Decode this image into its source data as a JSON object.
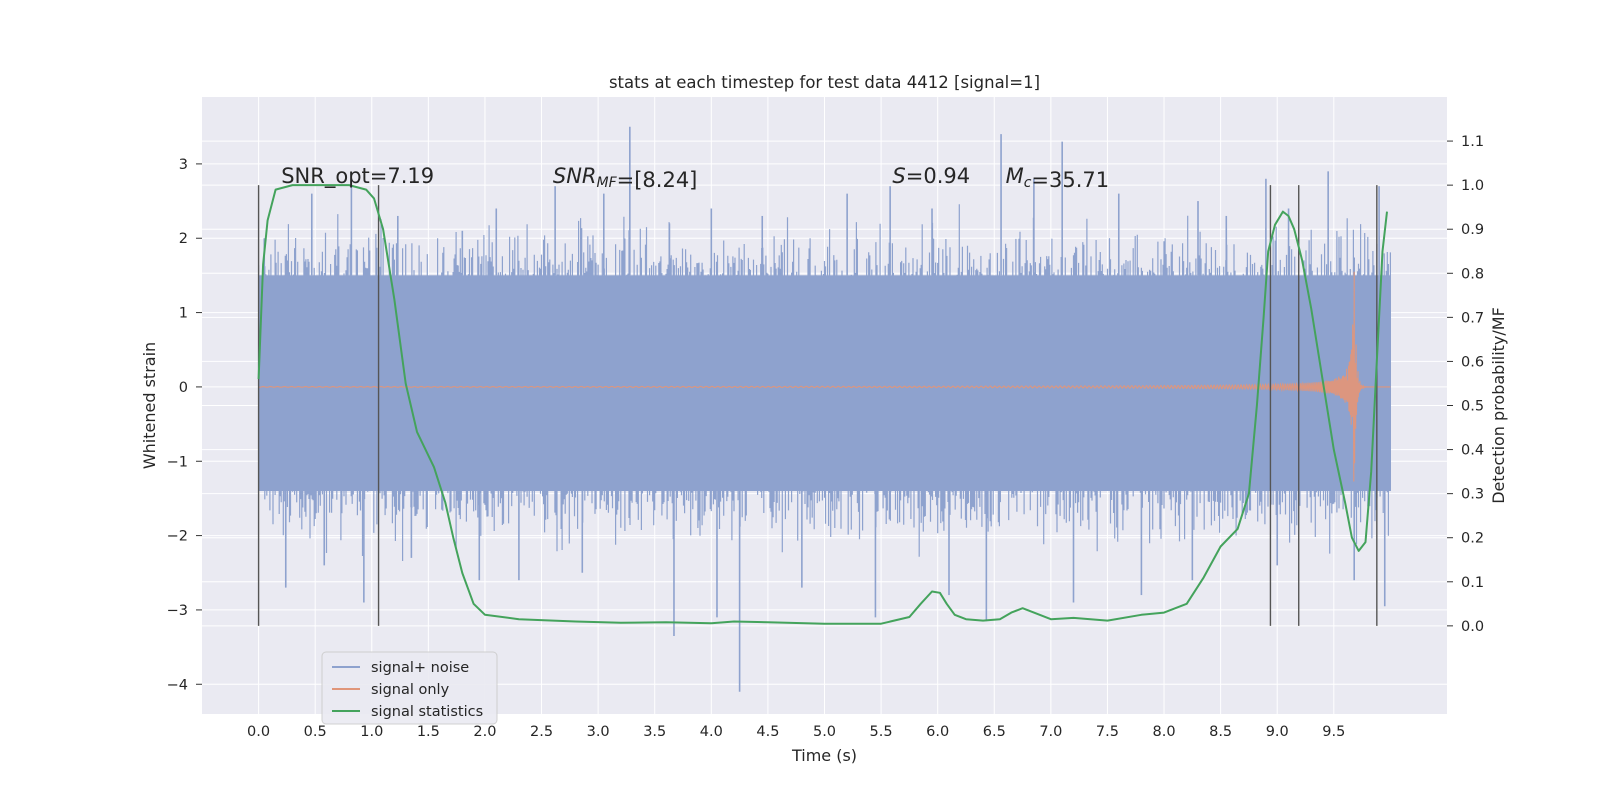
{
  "chart_data": {
    "type": "line",
    "title": "stats at each timestep for test data 4412 [signal=1]",
    "xlabel": "Time (s)",
    "ylabel": "Whitened strain",
    "ylabel_right": "Detection probability/MF",
    "xlim": [
      -0.5,
      10.5
    ],
    "ylim": [
      -4.4,
      3.9
    ],
    "ylim_right": [
      -0.2,
      1.2
    ],
    "x_ticks": [
      "0.0",
      "0.5",
      "1.0",
      "1.5",
      "2.0",
      "2.5",
      "3.0",
      "3.5",
      "4.0",
      "4.5",
      "5.0",
      "5.5",
      "6.0",
      "6.5",
      "7.0",
      "7.5",
      "8.0",
      "8.5",
      "9.0",
      "9.5"
    ],
    "y_ticks": [
      "3",
      "2",
      "1",
      "0",
      "−1",
      "−2",
      "−3",
      "−4"
    ],
    "y_right_ticks": [
      "1.1",
      "1.0",
      "0.9",
      "0.8",
      "0.7",
      "0.6",
      "0.5",
      "0.4",
      "0.3",
      "0.2",
      "0.1",
      "0.0"
    ],
    "grid": true,
    "legend_position": "lower-left",
    "colors": {
      "background": "#eaeaf2",
      "grid": "#ffffff",
      "noise": "#8ea2ce",
      "signal": "#e0967a",
      "stats": "#44a35c",
      "vline": "#555555"
    },
    "annotations": [
      {
        "parts": [
          {
            "t": "SNR_opt=7.19",
            "italic": false
          }
        ]
      },
      {
        "parts": [
          {
            "t": "SNR",
            "italic": true
          },
          {
            "t": "MF",
            "italic": true,
            "sub": true
          },
          {
            "t": "=[8.24]",
            "italic": false
          }
        ]
      },
      {
        "parts": [
          {
            "t": "S",
            "italic": true
          },
          {
            "t": "=0.94",
            "italic": false
          }
        ]
      },
      {
        "parts": [
          {
            "t": "M",
            "italic": true
          },
          {
            "t": "c",
            "italic": true,
            "sub": true
          },
          {
            "t": "=35.71",
            "italic": false
          }
        ]
      }
    ],
    "vertical_lines_x": [
      0.0,
      1.06,
      8.94,
      9.19,
      9.88
    ],
    "series": [
      {
        "name": "signal+ noise",
        "noise_envelope_x": [
          0.0,
          10.0
        ],
        "noise_envelope_y": [
          -1.4,
          1.5
        ],
        "noise_peaks": [
          [
            0.05,
            2.0
          ],
          [
            0.47,
            2.6
          ],
          [
            0.82,
            2.7
          ],
          [
            1.23,
            2.3
          ],
          [
            1.8,
            2.1
          ],
          [
            2.1,
            2.4
          ],
          [
            2.62,
            2.7
          ],
          [
            3.05,
            2.6
          ],
          [
            3.28,
            3.5
          ],
          [
            3.63,
            2.2
          ],
          [
            4.0,
            2.4
          ],
          [
            4.45,
            2.3
          ],
          [
            5.2,
            2.6
          ],
          [
            5.58,
            2.7
          ],
          [
            5.95,
            2.4
          ],
          [
            6.56,
            3.4
          ],
          [
            6.85,
            2.8
          ],
          [
            7.1,
            3.3
          ],
          [
            7.6,
            2.6
          ],
          [
            8.3,
            2.5
          ],
          [
            8.55,
            2.3
          ],
          [
            8.9,
            2.8
          ],
          [
            9.1,
            2.4
          ],
          [
            9.45,
            2.9
          ],
          [
            9.9,
            2.7
          ],
          [
            0.24,
            -2.7
          ],
          [
            0.58,
            -2.4
          ],
          [
            0.93,
            -2.9
          ],
          [
            1.35,
            -2.3
          ],
          [
            1.95,
            -2.6
          ],
          [
            2.3,
            -2.6
          ],
          [
            2.86,
            -2.5
          ],
          [
            3.67,
            -3.35
          ],
          [
            4.25,
            -4.1
          ],
          [
            4.05,
            -3.1
          ],
          [
            4.8,
            -2.7
          ],
          [
            5.45,
            -3.1
          ],
          [
            6.1,
            -2.8
          ],
          [
            6.43,
            -3.15
          ],
          [
            7.2,
            -2.9
          ],
          [
            7.8,
            -2.8
          ],
          [
            8.25,
            -2.6
          ],
          [
            9.0,
            -2.4
          ],
          [
            9.68,
            -2.6
          ],
          [
            9.95,
            -2.95
          ]
        ]
      },
      {
        "name": "signal only",
        "t_merger": 9.68,
        "amplitude_peak": 1.55
      },
      {
        "name": "signal statistics",
        "axis": "right",
        "x": [
          0.0,
          0.04,
          0.08,
          0.15,
          0.3,
          0.5,
          0.8,
          0.95,
          1.02,
          1.1,
          1.2,
          1.3,
          1.4,
          1.55,
          1.65,
          1.72,
          1.8,
          1.9,
          2.0,
          2.3,
          2.8,
          3.2,
          3.6,
          4.0,
          4.2,
          4.5,
          5.0,
          5.5,
          5.75,
          5.85,
          5.95,
          6.02,
          6.08,
          6.15,
          6.25,
          6.4,
          6.55,
          6.65,
          6.75,
          6.85,
          7.0,
          7.2,
          7.5,
          7.8,
          8.0,
          8.2,
          8.35,
          8.5,
          8.65,
          8.75,
          8.82,
          8.88,
          8.92,
          8.98,
          9.05,
          9.1,
          9.15,
          9.22,
          9.3,
          9.4,
          9.5,
          9.6,
          9.66,
          9.72,
          9.78,
          9.83,
          9.88,
          9.93,
          9.97
        ],
        "values": [
          0.56,
          0.82,
          0.92,
          0.99,
          1.0,
          1.0,
          1.0,
          0.99,
          0.97,
          0.9,
          0.74,
          0.55,
          0.44,
          0.36,
          0.28,
          0.2,
          0.12,
          0.05,
          0.025,
          0.015,
          0.01,
          0.007,
          0.008,
          0.006,
          0.01,
          0.008,
          0.005,
          0.005,
          0.02,
          0.05,
          0.078,
          0.075,
          0.05,
          0.025,
          0.015,
          0.012,
          0.015,
          0.03,
          0.04,
          0.03,
          0.015,
          0.018,
          0.012,
          0.025,
          0.03,
          0.05,
          0.11,
          0.18,
          0.22,
          0.3,
          0.5,
          0.7,
          0.85,
          0.91,
          0.94,
          0.93,
          0.9,
          0.83,
          0.72,
          0.56,
          0.4,
          0.28,
          0.2,
          0.17,
          0.19,
          0.35,
          0.6,
          0.85,
          0.94
        ]
      }
    ]
  }
}
